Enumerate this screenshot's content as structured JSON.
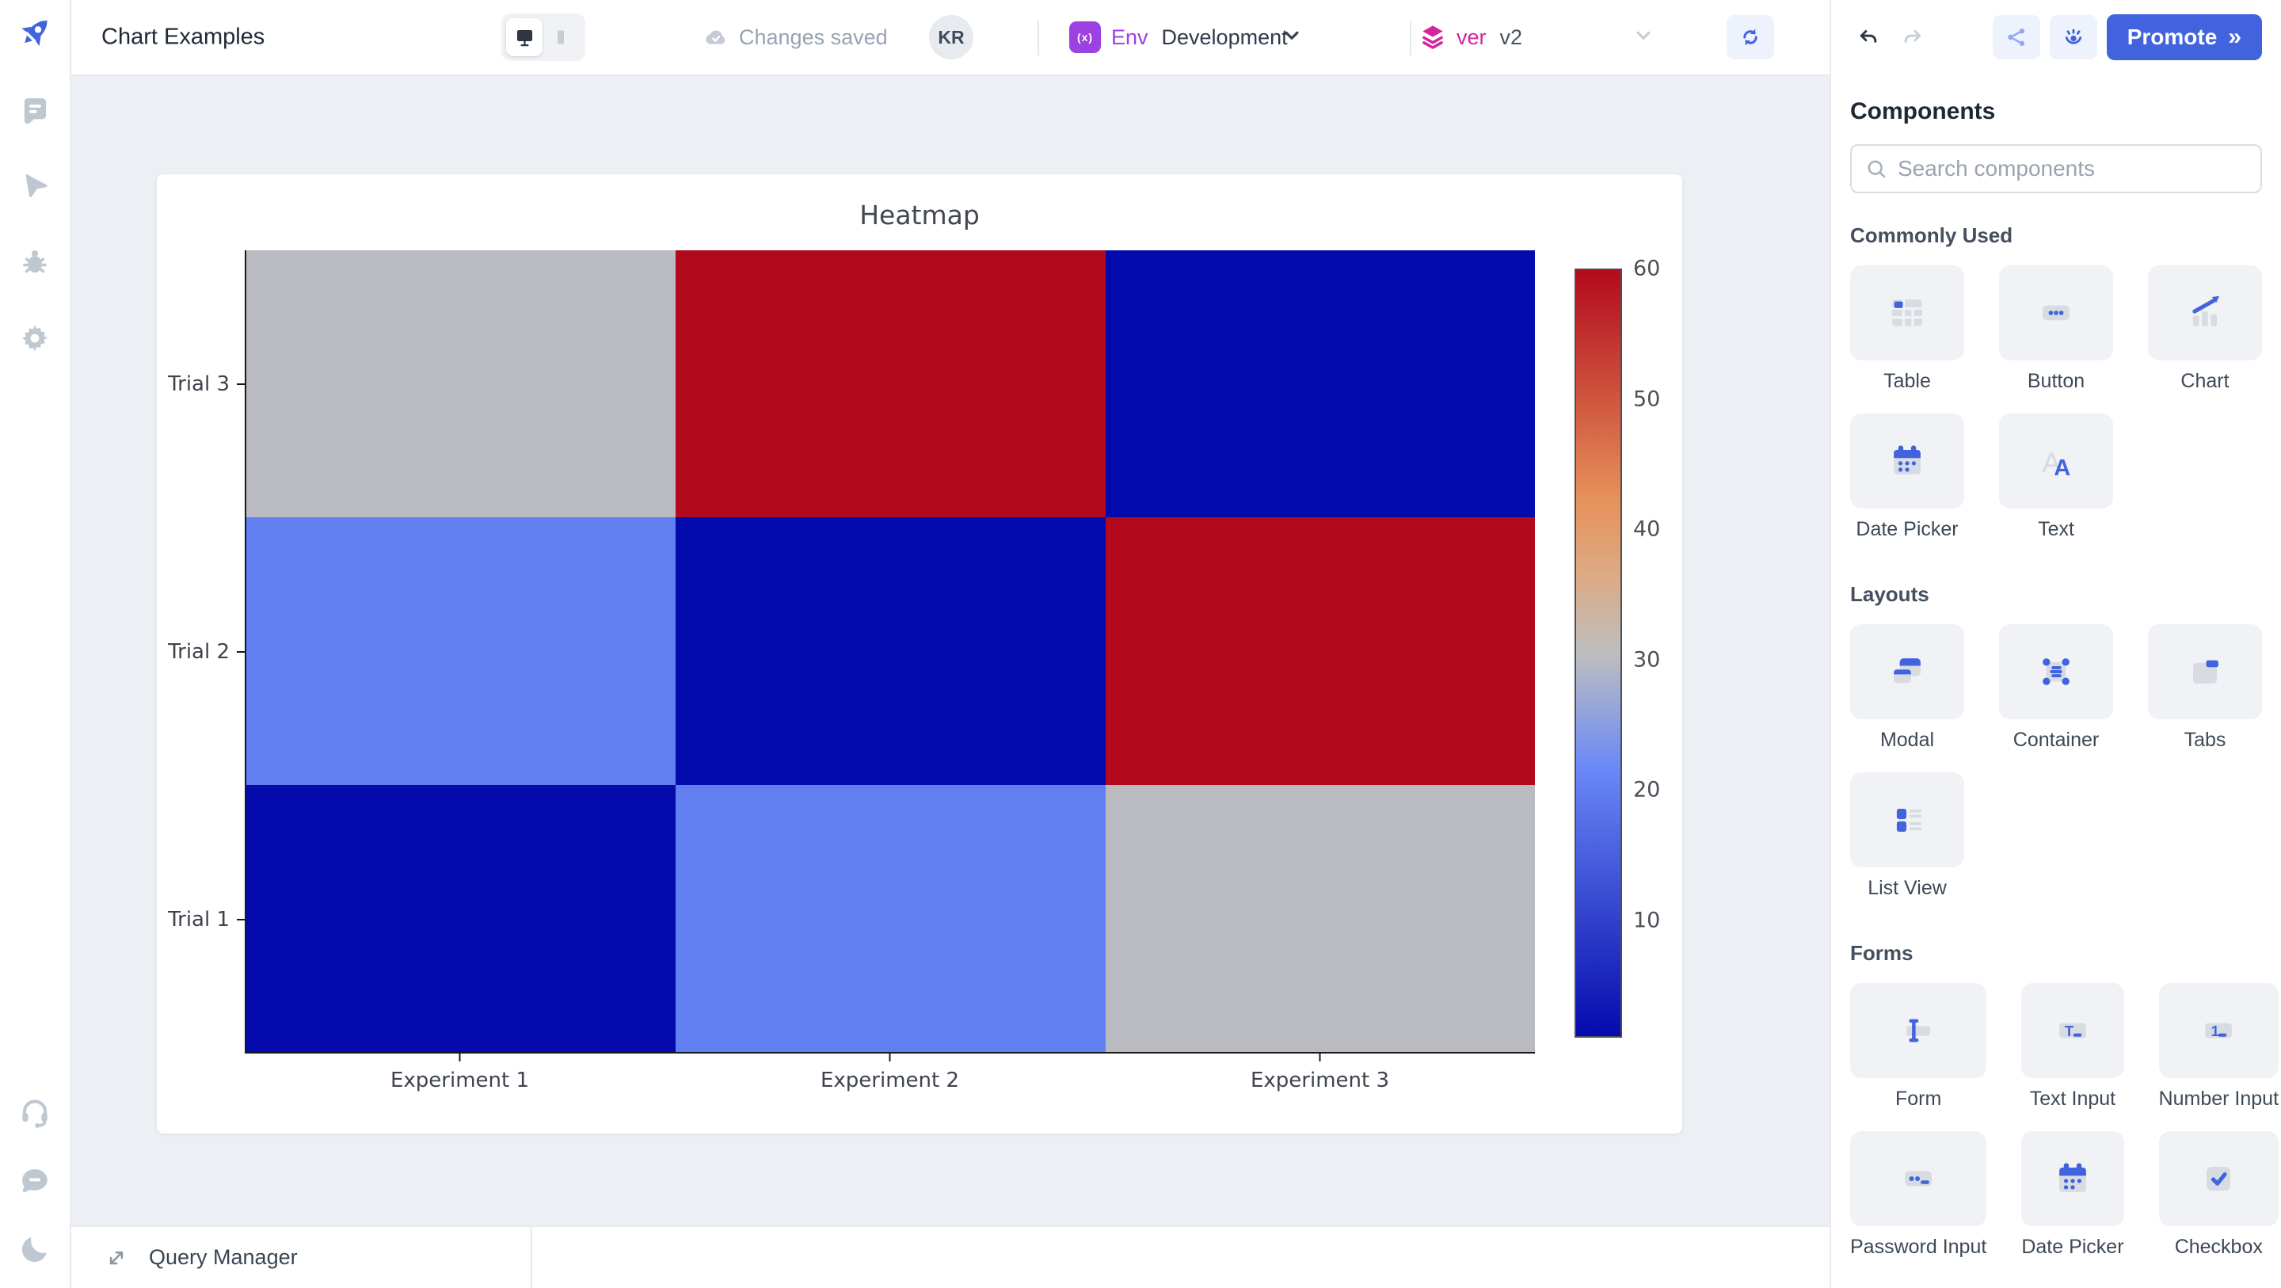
{
  "header": {
    "app_title": "Chart Examples",
    "autosave_status": "Changes saved",
    "avatar_initials": "KR",
    "environment": {
      "icon_text": "(x)",
      "label": "Env",
      "value": "Development"
    },
    "version": {
      "label": "ver",
      "value": "v2"
    },
    "promote": {
      "label": "Promote",
      "chevrons": "»"
    }
  },
  "left_sidebar": {
    "icons": [
      "pages",
      "inspector",
      "debugger",
      "settings"
    ],
    "bottom_icons": [
      "support",
      "comments",
      "theme-toggle"
    ]
  },
  "components_panel": {
    "title": "Components",
    "search_placeholder": "Search components",
    "sections": [
      {
        "title": "Commonly Used",
        "items": [
          {
            "label": "Table",
            "icon": "c-table"
          },
          {
            "label": "Button",
            "icon": "c-button"
          },
          {
            "label": "Chart",
            "icon": "c-chart"
          },
          {
            "label": "Date Picker",
            "icon": "c-calendar"
          },
          {
            "label": "Text",
            "icon": "c-text"
          }
        ]
      },
      {
        "title": "Layouts",
        "items": [
          {
            "label": "Modal",
            "icon": "c-modal"
          },
          {
            "label": "Container",
            "icon": "c-container"
          },
          {
            "label": "Tabs",
            "icon": "c-tabs"
          },
          {
            "label": "List View",
            "icon": "c-listview"
          }
        ]
      },
      {
        "title": "Forms",
        "items": [
          {
            "label": "Form",
            "icon": "c-form"
          },
          {
            "label": "Text Input",
            "icon": "c-textinput"
          },
          {
            "label": "Number Input",
            "icon": "c-numberinput"
          },
          {
            "label": "Password Input",
            "icon": "c-passwordinput"
          },
          {
            "label": "Date Picker",
            "icon": "c-calendar"
          },
          {
            "label": "Checkbox",
            "icon": "c-checkbox"
          }
        ]
      }
    ]
  },
  "bottom_bar": {
    "query_manager_label": "Query Manager"
  },
  "chart_data": {
    "type": "heatmap",
    "title": "Heatmap",
    "x": [
      "Experiment 1",
      "Experiment 2",
      "Experiment 3"
    ],
    "y": [
      "Trial 1",
      "Trial 2",
      "Trial 3"
    ],
    "z": [
      [
        1,
        20,
        30
      ],
      [
        20,
        1,
        60
      ],
      [
        30,
        60,
        1
      ]
    ],
    "zmin": 1,
    "zmax": 60,
    "colorbar_ticks": [
      10,
      20,
      30,
      40,
      50,
      60
    ],
    "colorscale": [
      {
        "t": 0.0,
        "rgb": [
          5,
          10,
          172
        ]
      },
      {
        "t": 0.35,
        "rgb": [
          106,
          137,
          247
        ]
      },
      {
        "t": 0.5,
        "rgb": [
          190,
          190,
          190
        ]
      },
      {
        "t": 0.6,
        "rgb": [
          220,
          170,
          132
        ]
      },
      {
        "t": 0.7,
        "rgb": [
          230,
          145,
          90
        ]
      },
      {
        "t": 1.0,
        "rgb": [
          178,
          10,
          28
        ]
      }
    ],
    "legend_position": "right-colorbar",
    "grid": false
  },
  "colors": {
    "accent": "#4164DE",
    "accent_soft": "#EDF2FD",
    "env_purple": "#9C41E2",
    "version_pink": "#D6259B",
    "canvas_bg": "#ECEFF3"
  }
}
